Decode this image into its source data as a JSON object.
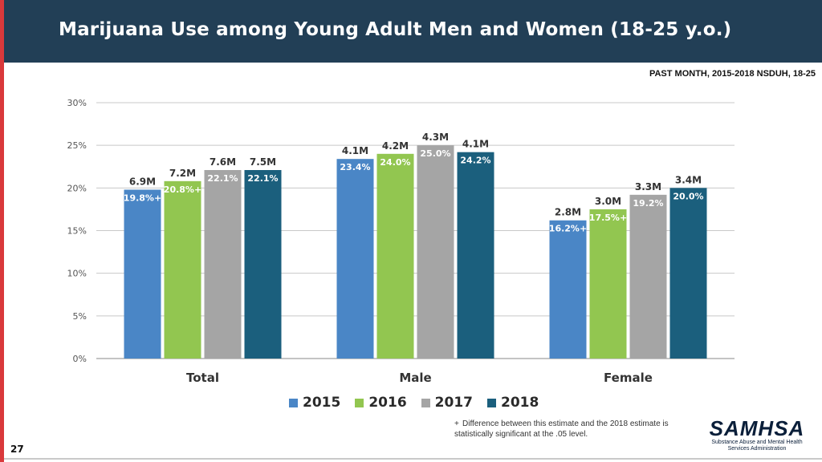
{
  "header": {
    "title": "Marijuana Use among Young Adult Men and Women (18-25 y.o.)"
  },
  "subtitle": "PAST MONTH, 2015-2018 NSDUH, 18-25",
  "footnote": {
    "marker": "+",
    "text": "Difference between this estimate and the 2018 estimate is statistically significant at the .05 level."
  },
  "page_number": "27",
  "logo": {
    "name": "SAMHSA",
    "subtext": "Substance Abuse and Mental Health Services Administration"
  },
  "chart_data": {
    "type": "bar",
    "categories": [
      "Total",
      "Male",
      "Female"
    ],
    "ylim": [
      0,
      30
    ],
    "yticks": [
      0,
      5,
      10,
      15,
      20,
      25,
      30
    ],
    "ytick_labels": [
      "0%",
      "5%",
      "10%",
      "15%",
      "20%",
      "25%",
      "30%"
    ],
    "grid": true,
    "legend_position": "bottom",
    "series": [
      {
        "name": "2015",
        "color": "#4a86c6",
        "values": [
          19.8,
          23.4,
          16.2
        ],
        "labels": [
          "19.8%",
          "23.4%",
          "16.2%"
        ],
        "significant": [
          true,
          false,
          true
        ],
        "counts": [
          "6.9M",
          "4.1M",
          "2.8M"
        ]
      },
      {
        "name": "2016",
        "color": "#92c650",
        "values": [
          20.8,
          24.0,
          17.5
        ],
        "labels": [
          "20.8%",
          "24.0%",
          "17.5%"
        ],
        "significant": [
          true,
          false,
          true
        ],
        "counts": [
          "7.2M",
          "4.2M",
          "3.0M"
        ]
      },
      {
        "name": "2017",
        "color": "#a5a5a5",
        "values": [
          22.1,
          25.0,
          19.2
        ],
        "labels": [
          "22.1%",
          "25.0%",
          "19.2%"
        ],
        "significant": [
          false,
          false,
          false
        ],
        "counts": [
          "7.6M",
          "4.3M",
          "3.3M"
        ]
      },
      {
        "name": "2018",
        "color": "#1b5f7d",
        "values": [
          22.1,
          24.2,
          20.0
        ],
        "labels": [
          "22.1%",
          "24.2%",
          "20.0%"
        ],
        "significant": [
          false,
          false,
          false
        ],
        "counts": [
          "7.5M",
          "4.1M",
          "3.4M"
        ]
      }
    ]
  }
}
